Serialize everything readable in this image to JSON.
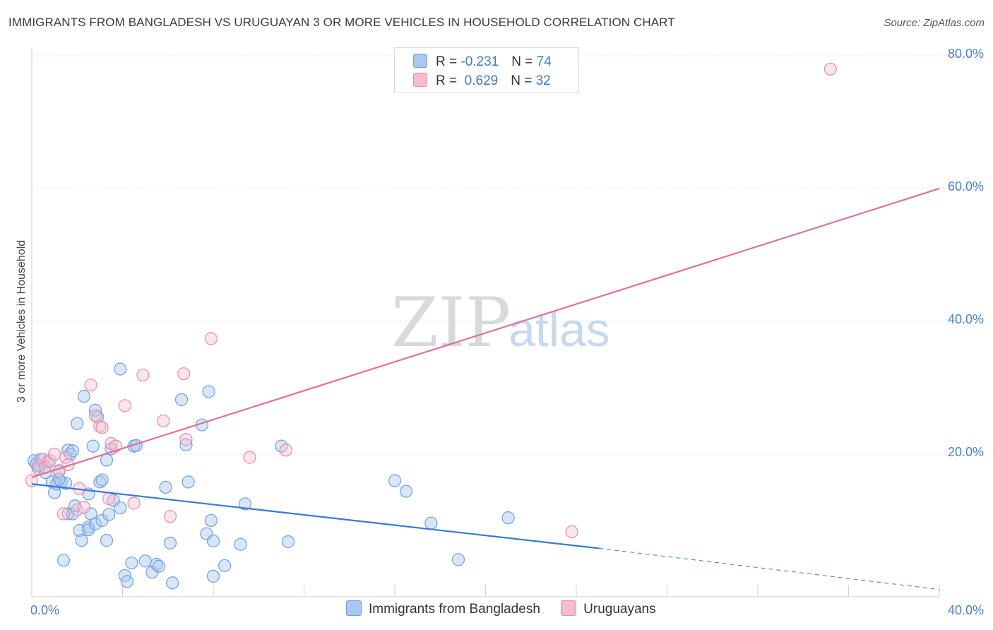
{
  "header": {
    "title": "IMMIGRANTS FROM BANGLADESH VS URUGUAYAN 3 OR MORE VEHICLES IN HOUSEHOLD CORRELATION CHART",
    "source": "Source: ZipAtlas.com"
  },
  "watermark": {
    "zip": "ZIP",
    "atlas": "atlas"
  },
  "legend": {
    "rows": [
      {
        "r_label": "R = ",
        "r_value": "-0.231",
        "n_label": "N = ",
        "n_value": "74"
      },
      {
        "r_label": "R = ",
        "r_value": " 0.629",
        "n_label": "N = ",
        "n_value": "32"
      }
    ]
  },
  "colors": {
    "blue_fill": "#a9c8ef",
    "blue_stroke": "#6f9fdc",
    "blue_line": "#3a78d4",
    "pink_fill": "#f5bdd0",
    "pink_stroke": "#e88aa8",
    "pink_line": "#e0709a",
    "grid": "#e3e3e3",
    "tick_text": "#4a7fc7"
  },
  "chart_data": {
    "type": "scatter",
    "title": "IMMIGRANTS FROM BANGLADESH VS URUGUAYAN 3 OR MORE VEHICLES IN HOUSEHOLD CORRELATION CHART",
    "xlabel": "",
    "ylabel": "3 or more Vehicles in Household",
    "xlim": [
      0,
      40
    ],
    "ylim": [
      -1.5,
      80
    ],
    "x_ticks": [
      {
        "value": 0,
        "label": "0.0%"
      },
      {
        "value": 40,
        "label": "40.0%"
      }
    ],
    "x_minor_ticks": [
      4,
      8,
      12,
      16,
      20,
      24,
      28,
      32,
      36,
      40
    ],
    "y_ticks": [
      {
        "value": 20,
        "label": "20.0%"
      },
      {
        "value": 40,
        "label": "40.0%"
      },
      {
        "value": 60,
        "label": "60.0%"
      },
      {
        "value": 80,
        "label": "80.0%"
      }
    ],
    "series": [
      {
        "name": "Immigrants from Bangladesh",
        "color": "blue",
        "trend": {
          "x0": 0,
          "y0": 15.5,
          "x1": 25,
          "y1": 5.8,
          "dash_x1": 40,
          "dash_y1": -0.4
        },
        "points": [
          [
            0.1,
            19
          ],
          [
            0.2,
            18.5
          ],
          [
            0.3,
            17.8
          ],
          [
            0.4,
            19.2
          ],
          [
            0.3,
            18.2
          ],
          [
            0.6,
            17.2
          ],
          [
            0.7,
            18.8
          ],
          [
            0.9,
            15.8
          ],
          [
            1.0,
            14.2
          ],
          [
            1.1,
            15.5
          ],
          [
            1.2,
            17.5
          ],
          [
            1.3,
            15.8
          ],
          [
            1.5,
            15.6
          ],
          [
            1.2,
            16.2
          ],
          [
            1.4,
            4.0
          ],
          [
            1.6,
            20.6
          ],
          [
            1.7,
            20.0
          ],
          [
            1.8,
            20.5
          ],
          [
            1.6,
            11.0
          ],
          [
            1.8,
            11.0
          ],
          [
            1.9,
            12.2
          ],
          [
            2.0,
            24.6
          ],
          [
            2.1,
            8.5
          ],
          [
            2.2,
            7.0
          ],
          [
            2.3,
            28.7
          ],
          [
            2.5,
            9.0
          ],
          [
            2.5,
            8.6
          ],
          [
            2.5,
            14.0
          ],
          [
            2.6,
            11.0
          ],
          [
            2.7,
            21.2
          ],
          [
            2.8,
            9.5
          ],
          [
            2.8,
            26.6
          ],
          [
            2.9,
            25.6
          ],
          [
            3.0,
            15.8
          ],
          [
            3.1,
            10.0
          ],
          [
            3.1,
            16.1
          ],
          [
            3.3,
            19.1
          ],
          [
            3.3,
            7.0
          ],
          [
            3.4,
            10.9
          ],
          [
            3.5,
            20.8
          ],
          [
            3.6,
            13.0
          ],
          [
            3.9,
            11.9
          ],
          [
            3.9,
            32.8
          ],
          [
            4.1,
            1.7
          ],
          [
            4.2,
            0.8
          ],
          [
            4.4,
            3.6
          ],
          [
            4.5,
            21.2
          ],
          [
            4.6,
            21.3
          ],
          [
            5.0,
            3.9
          ],
          [
            5.3,
            2.2
          ],
          [
            5.5,
            3.4
          ],
          [
            5.6,
            3.1
          ],
          [
            5.9,
            15.0
          ],
          [
            6.1,
            6.6
          ],
          [
            6.2,
            0.6
          ],
          [
            6.6,
            28.2
          ],
          [
            6.8,
            21.4
          ],
          [
            6.9,
            15.8
          ],
          [
            7.5,
            24.4
          ],
          [
            7.7,
            8.0
          ],
          [
            7.8,
            29.4
          ],
          [
            7.9,
            10.0
          ],
          [
            8.0,
            6.9
          ],
          [
            8.0,
            1.6
          ],
          [
            8.5,
            3.2
          ],
          [
            9.2,
            6.4
          ],
          [
            9.4,
            12.5
          ],
          [
            11.0,
            21.2
          ],
          [
            11.3,
            6.8
          ],
          [
            16.0,
            16.0
          ],
          [
            16.5,
            14.4
          ],
          [
            17.6,
            9.6
          ],
          [
            18.8,
            4.1
          ],
          [
            21.0,
            10.4
          ]
        ]
      },
      {
        "name": "Uruguayans",
        "color": "pink",
        "trend": {
          "x0": 0,
          "y0": 16.5,
          "x1": 40,
          "y1": 60
        },
        "points": [
          [
            0.0,
            16.0
          ],
          [
            0.3,
            18.2
          ],
          [
            0.5,
            19.2
          ],
          [
            0.6,
            18.0
          ],
          [
            0.8,
            19.0
          ],
          [
            1.0,
            20.0
          ],
          [
            1.2,
            17.4
          ],
          [
            1.4,
            11.0
          ],
          [
            1.5,
            19.5
          ],
          [
            1.6,
            18.4
          ],
          [
            2.0,
            11.6
          ],
          [
            2.1,
            14.8
          ],
          [
            2.3,
            12.0
          ],
          [
            2.6,
            30.4
          ],
          [
            2.8,
            25.8
          ],
          [
            3.0,
            24.2
          ],
          [
            3.1,
            24.0
          ],
          [
            3.4,
            13.3
          ],
          [
            3.5,
            21.6
          ],
          [
            3.7,
            21.2
          ],
          [
            4.1,
            27.3
          ],
          [
            4.5,
            12.6
          ],
          [
            4.9,
            31.9
          ],
          [
            5.8,
            25.0
          ],
          [
            6.1,
            10.6
          ],
          [
            6.7,
            32.1
          ],
          [
            6.8,
            22.2
          ],
          [
            7.9,
            37.4
          ],
          [
            9.6,
            19.5
          ],
          [
            11.2,
            20.6
          ],
          [
            23.8,
            8.3
          ],
          [
            35.2,
            78.0
          ]
        ]
      }
    ]
  },
  "bottom_legend": {
    "items": [
      {
        "label": "Immigrants from Bangladesh"
      },
      {
        "label": "Uruguayans"
      }
    ]
  }
}
